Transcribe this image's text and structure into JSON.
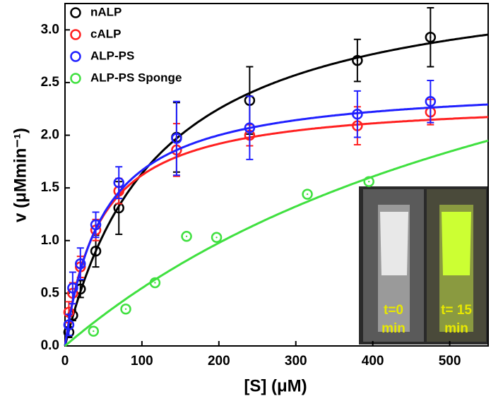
{
  "chart_data": {
    "type": "scatter",
    "xlabel": "[S] (μM)",
    "ylabel": "v (μMmin⁻¹)",
    "xlim": [
      0,
      550
    ],
    "ylim": [
      0,
      3.25
    ],
    "xticks": [
      0,
      100,
      200,
      300,
      400,
      500
    ],
    "yticks": [
      {
        "value": 0,
        "label": "0.0"
      },
      0.5,
      {
        "value": 1,
        "label": "1.0"
      },
      1.5,
      {
        "value": 2,
        "label": "2.0"
      },
      2.5,
      {
        "value": 3,
        "label": "3.0"
      }
    ],
    "legend": "upper left",
    "series": [
      {
        "name": "nALP",
        "color": "#000000",
        "x": [
          5,
          10,
          20,
          40,
          70,
          145,
          240,
          380,
          475
        ],
        "values": [
          0.13,
          0.29,
          0.54,
          0.9,
          1.31,
          1.98,
          2.33,
          2.71,
          2.93
        ],
        "errors": [
          0.05,
          0.05,
          0.08,
          0.15,
          0.25,
          0.33,
          0.32,
          0.2,
          0.28
        ],
        "fit": {
          "vmax": 3.6,
          "km": 120
        }
      },
      {
        "name": "cALP",
        "color": "#ff2020",
        "x": [
          5,
          10,
          20,
          40,
          70,
          145,
          240,
          380,
          475
        ],
        "values": [
          0.32,
          0.5,
          0.75,
          1.1,
          1.47,
          1.86,
          2.0,
          2.09,
          2.22
        ],
        "errors": [
          0.1,
          0.1,
          0.1,
          0.1,
          0.12,
          0.25,
          0.1,
          0.18,
          0.12
        ],
        "fit": {
          "vmax": 2.35,
          "km": 45
        }
      },
      {
        "name": "ALP-PS",
        "color": "#2020ff",
        "x": [
          5,
          10,
          20,
          40,
          70,
          145,
          240,
          380,
          475
        ],
        "values": [
          0.2,
          0.55,
          0.78,
          1.15,
          1.55,
          1.97,
          2.07,
          2.2,
          2.32
        ],
        "errors": [
          0.1,
          0.15,
          0.15,
          0.12,
          0.15,
          0.35,
          0.3,
          0.22,
          0.2
        ],
        "fit": {
          "vmax": 2.5,
          "km": 50
        }
      },
      {
        "name": "ALP-PS Sponge",
        "color": "#40e040",
        "x": [
          37,
          79,
          117,
          158,
          197,
          315,
          395
        ],
        "values": [
          0.14,
          0.35,
          0.6,
          1.04,
          1.03,
          1.44,
          1.56
        ],
        "fit": {
          "vmax": 4.5,
          "km": 720
        }
      }
    ],
    "inset_labels": [
      [
        "t=0",
        "min"
      ],
      [
        "t= 15",
        "min"
      ]
    ]
  }
}
